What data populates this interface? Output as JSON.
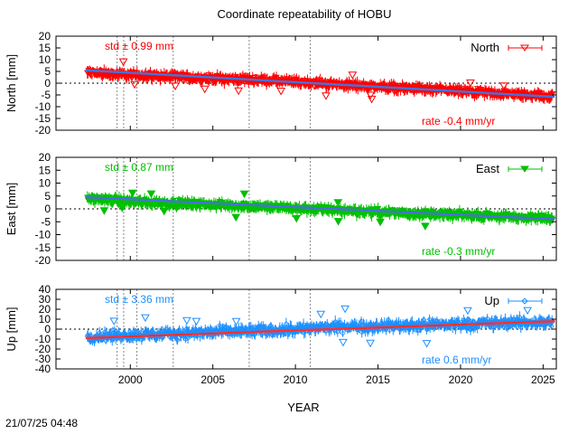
{
  "figure": {
    "title": "Coordinate repeatability of HOBU",
    "xlabel": "YEAR",
    "timestamp": "21/07/25 04:48"
  },
  "chart_data": [
    {
      "type": "scatter",
      "panel": "north",
      "ylabel": "North [mm]",
      "legend": "North",
      "legend_position": "top-right",
      "std_label": "std ± 0.99 mm",
      "rate_label": "rate -0.4 mm/yr",
      "color": "#ff0000",
      "trend_color": "#4a6fd8",
      "marker": "triangle-down-open",
      "xlim": [
        1995.5,
        2025.8
      ],
      "ylim": [
        -20,
        20
      ],
      "yticks": [
        20,
        15,
        10,
        5,
        0,
        -5,
        -10,
        -15,
        -20
      ],
      "series": [
        {
          "name": "North",
          "x": [
            1997.5,
            2000,
            2002.5,
            2005,
            2007.5,
            2010,
            2012.5,
            2015,
            2017.5,
            2020,
            2022.5,
            2025.5
          ],
          "y": [
            4.5,
            3.5,
            2.8,
            2.0,
            1.5,
            0.5,
            -0.5,
            -1.5,
            -2.5,
            -3.5,
            -4.5,
            -5.5
          ]
        }
      ],
      "trend": {
        "x": [
          1997.3,
          2025.7
        ],
        "y": [
          5.5,
          -5.8
        ]
      }
    },
    {
      "type": "scatter",
      "panel": "east",
      "ylabel": "East [mm]",
      "legend": "East",
      "legend_position": "top-right",
      "std_label": "std ± 0.87 mm",
      "rate_label": "rate -0.3 mm/yr",
      "color": "#00c000",
      "trend_color": "#4a6fd8",
      "marker": "triangle-down-filled",
      "xlim": [
        1995.5,
        2025.8
      ],
      "ylim": [
        -20,
        20
      ],
      "yticks": [
        20,
        15,
        10,
        5,
        0,
        -5,
        -10,
        -15,
        -20
      ],
      "series": [
        {
          "name": "East",
          "x": [
            1997.5,
            2000,
            2002.5,
            2005,
            2007.5,
            2010,
            2012.5,
            2015,
            2017.5,
            2020,
            2022.5,
            2025.5
          ],
          "y": [
            4.0,
            3.0,
            2.2,
            1.6,
            1.0,
            0.2,
            -0.5,
            -1.2,
            -1.8,
            -2.4,
            -3.0,
            -3.8
          ]
        }
      ],
      "trend": {
        "x": [
          1997.3,
          2025.7
        ],
        "y": [
          4.5,
          -4.0
        ]
      }
    },
    {
      "type": "scatter",
      "panel": "up",
      "ylabel": "Up [mm]",
      "legend": "Up",
      "legend_position": "top-right",
      "std_label": "std ± 3.36 mm",
      "rate_label": "rate  0.6 mm/yr",
      "color": "#1e90ff",
      "trend_color": "#ff3030",
      "marker": "diamond-open",
      "xlim": [
        1995.5,
        2025.8
      ],
      "ylim": [
        -40,
        40
      ],
      "yticks": [
        40,
        30,
        20,
        10,
        0,
        -10,
        -20,
        -30,
        -40
      ],
      "series": [
        {
          "name": "Up",
          "x": [
            1997.5,
            2000,
            2002.5,
            2005,
            2007.5,
            2010,
            2012.5,
            2015,
            2017.5,
            2020,
            2022.5,
            2025.5
          ],
          "y": [
            -8,
            -6,
            -5,
            -3,
            -2,
            0,
            2,
            3,
            4,
            5,
            6,
            7
          ]
        }
      ],
      "trend": {
        "x": [
          1997.3,
          2025.7
        ],
        "y": [
          -9,
          8
        ]
      }
    }
  ],
  "xticks": [
    2000,
    2005,
    2010,
    2015,
    2020,
    2025
  ],
  "event_lines": [
    1999.2,
    1999.6,
    2000.4,
    2002.6,
    2007.2,
    2010.9
  ]
}
